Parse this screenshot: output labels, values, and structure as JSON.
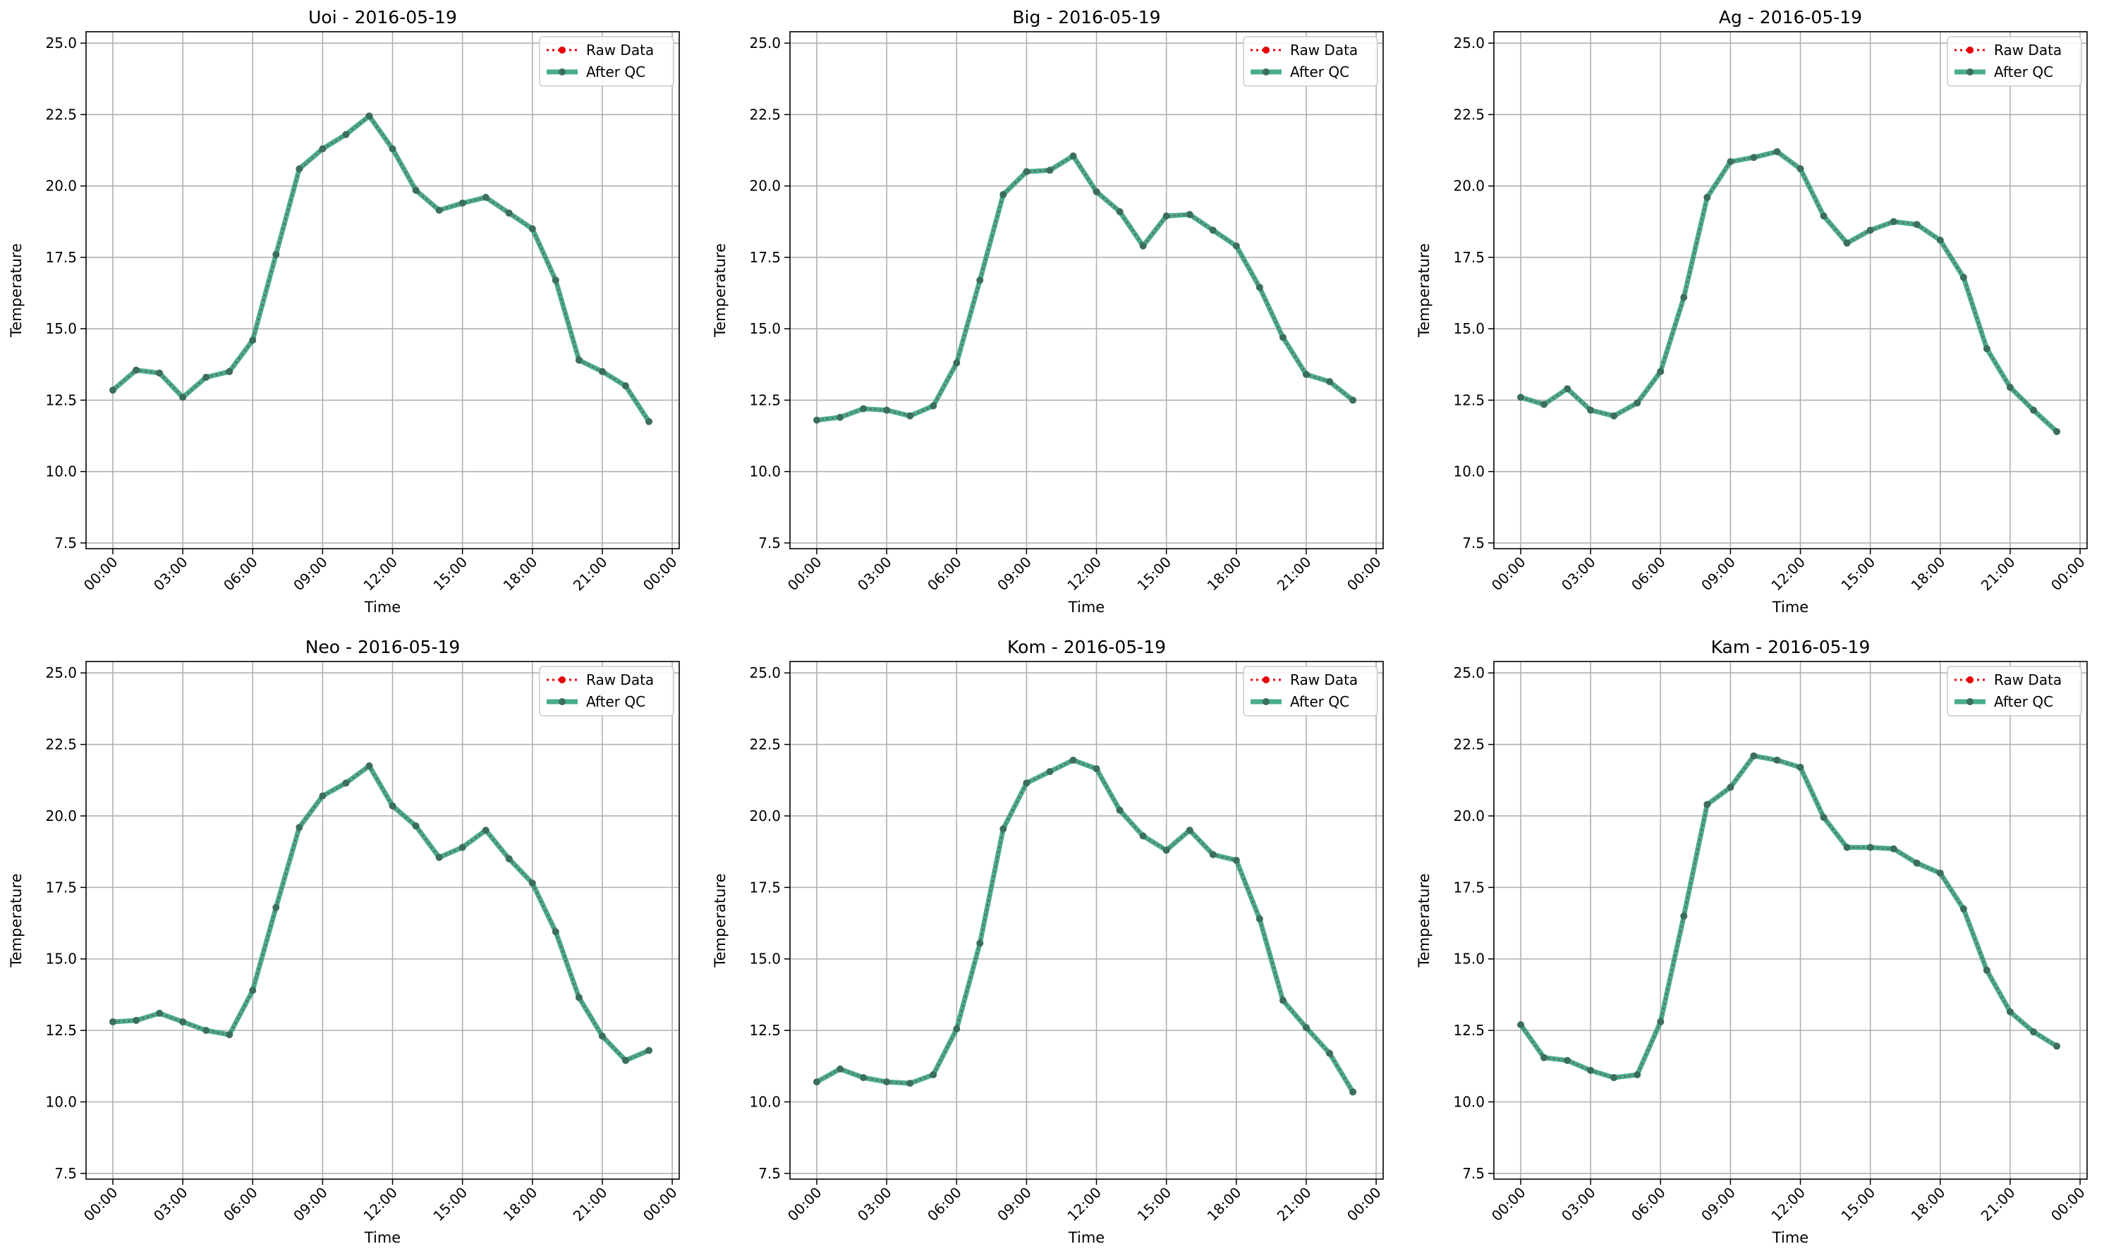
{
  "figure": {
    "x_ticks": [
      "00:00",
      "03:00",
      "06:00",
      "09:00",
      "12:00",
      "15:00",
      "18:00",
      "21:00",
      "00:00"
    ],
    "y_ticks": [
      "7.5",
      "10.0",
      "12.5",
      "15.0",
      "17.5",
      "20.0",
      "22.5",
      "25.0"
    ]
  },
  "legend": {
    "raw_label": "Raw Data",
    "qc_label": "After QC",
    "raw_color": "#e8000b",
    "qc_color": "#2a9d7a",
    "qc_marker_color": "#3b6e5e"
  },
  "chart_data": [
    {
      "type": "line",
      "title": "Uoi - 2016-05-19",
      "xlabel": "Time",
      "ylabel": "Temperature",
      "ylim": [
        7.3,
        25.4
      ],
      "x_hours": [
        0,
        1,
        2,
        3,
        4,
        5,
        6,
        7,
        8,
        9,
        10,
        11,
        12,
        13,
        14,
        15,
        16,
        17,
        18,
        19,
        20,
        21,
        22,
        23
      ],
      "series": [
        {
          "name": "Raw Data",
          "values": [
            12.85,
            13.55,
            13.45,
            12.6,
            13.3,
            13.5,
            14.6,
            17.6,
            20.6,
            21.3,
            21.8,
            22.45,
            21.3,
            19.85,
            19.15,
            19.4,
            19.6,
            19.05,
            18.5,
            16.7,
            13.9,
            13.5,
            13.0,
            11.75
          ]
        },
        {
          "name": "After QC",
          "values": [
            12.85,
            13.55,
            13.45,
            12.6,
            13.3,
            13.5,
            14.6,
            17.6,
            20.6,
            21.3,
            21.8,
            22.45,
            21.3,
            19.85,
            19.15,
            19.4,
            19.6,
            19.05,
            18.5,
            16.7,
            13.9,
            13.5,
            13.0,
            11.75
          ]
        }
      ]
    },
    {
      "type": "line",
      "title": "Big - 2016-05-19",
      "xlabel": "Time",
      "ylabel": "Temperature",
      "ylim": [
        7.3,
        25.4
      ],
      "x_hours": [
        0,
        1,
        2,
        3,
        4,
        5,
        6,
        7,
        8,
        9,
        10,
        11,
        12,
        13,
        14,
        15,
        16,
        17,
        18,
        19,
        20,
        21,
        22,
        23
      ],
      "series": [
        {
          "name": "Raw Data",
          "values": [
            11.8,
            11.9,
            12.2,
            12.15,
            11.95,
            12.3,
            13.8,
            16.7,
            19.7,
            20.5,
            20.55,
            21.05,
            19.8,
            19.1,
            17.9,
            18.95,
            19.0,
            18.45,
            17.9,
            16.45,
            14.7,
            13.4,
            13.15,
            12.5
          ]
        },
        {
          "name": "After QC",
          "values": [
            11.8,
            11.9,
            12.2,
            12.15,
            11.95,
            12.3,
            13.8,
            16.7,
            19.7,
            20.5,
            20.55,
            21.05,
            19.8,
            19.1,
            17.9,
            18.95,
            19.0,
            18.45,
            17.9,
            16.45,
            14.7,
            13.4,
            13.15,
            12.5
          ]
        }
      ]
    },
    {
      "type": "line",
      "title": "Ag - 2016-05-19",
      "xlabel": "Time",
      "ylabel": "Temperature",
      "ylim": [
        7.3,
        25.4
      ],
      "x_hours": [
        0,
        1,
        2,
        3,
        4,
        5,
        6,
        7,
        8,
        9,
        10,
        11,
        12,
        13,
        14,
        15,
        16,
        17,
        18,
        19,
        20,
        21,
        22,
        23
      ],
      "series": [
        {
          "name": "Raw Data",
          "values": [
            12.6,
            12.35,
            12.9,
            12.15,
            11.95,
            12.4,
            13.5,
            16.1,
            19.6,
            20.85,
            21.0,
            21.2,
            20.6,
            18.95,
            18.0,
            18.45,
            18.75,
            18.65,
            18.1,
            16.8,
            14.3,
            12.95,
            12.15,
            11.4
          ]
        },
        {
          "name": "After QC",
          "values": [
            12.6,
            12.35,
            12.9,
            12.15,
            11.95,
            12.4,
            13.5,
            16.1,
            19.6,
            20.85,
            21.0,
            21.2,
            20.6,
            18.95,
            18.0,
            18.45,
            18.75,
            18.65,
            18.1,
            16.8,
            14.3,
            12.95,
            12.15,
            11.4
          ]
        }
      ]
    },
    {
      "type": "line",
      "title": "Neo - 2016-05-19",
      "xlabel": "Time",
      "ylabel": "Temperature",
      "ylim": [
        7.3,
        25.4
      ],
      "x_hours": [
        0,
        1,
        2,
        3,
        4,
        5,
        6,
        7,
        8,
        9,
        10,
        11,
        12,
        13,
        14,
        15,
        16,
        17,
        18,
        19,
        20,
        21,
        22,
        23
      ],
      "series": [
        {
          "name": "Raw Data",
          "values": [
            12.8,
            12.85,
            13.1,
            12.8,
            12.5,
            12.35,
            13.9,
            16.8,
            19.6,
            20.7,
            21.15,
            21.75,
            20.35,
            19.65,
            18.55,
            18.9,
            19.5,
            18.5,
            17.65,
            15.95,
            13.65,
            12.3,
            11.45,
            11.8
          ]
        },
        {
          "name": "After QC",
          "values": [
            12.8,
            12.85,
            13.1,
            12.8,
            12.5,
            12.35,
            13.9,
            16.8,
            19.6,
            20.7,
            21.15,
            21.75,
            20.35,
            19.65,
            18.55,
            18.9,
            19.5,
            18.5,
            17.65,
            15.95,
            13.65,
            12.3,
            11.45,
            11.8
          ]
        }
      ]
    },
    {
      "type": "line",
      "title": "Kom - 2016-05-19",
      "xlabel": "Time",
      "ylabel": "Temperature",
      "ylim": [
        7.3,
        25.4
      ],
      "x_hours": [
        0,
        1,
        2,
        3,
        4,
        5,
        6,
        7,
        8,
        9,
        10,
        11,
        12,
        13,
        14,
        15,
        16,
        17,
        18,
        19,
        20,
        21,
        22,
        23
      ],
      "series": [
        {
          "name": "Raw Data",
          "values": [
            10.7,
            11.15,
            10.85,
            10.7,
            10.65,
            10.95,
            12.55,
            15.55,
            19.55,
            21.15,
            21.55,
            21.95,
            21.65,
            20.2,
            19.3,
            18.8,
            19.5,
            18.65,
            18.45,
            16.4,
            13.55,
            12.6,
            11.7,
            10.35
          ]
        },
        {
          "name": "After QC",
          "values": [
            10.7,
            11.15,
            10.85,
            10.7,
            10.65,
            10.95,
            12.55,
            15.55,
            19.55,
            21.15,
            21.55,
            21.95,
            21.65,
            20.2,
            19.3,
            18.8,
            19.5,
            18.65,
            18.45,
            16.4,
            13.55,
            12.6,
            11.7,
            10.35
          ]
        }
      ]
    },
    {
      "type": "line",
      "title": "Kam - 2016-05-19",
      "xlabel": "Time",
      "ylabel": "Temperature",
      "ylim": [
        7.3,
        25.4
      ],
      "x_hours": [
        0,
        1,
        2,
        3,
        4,
        5,
        6,
        7,
        8,
        9,
        10,
        11,
        12,
        13,
        14,
        15,
        16,
        17,
        18,
        19,
        20,
        21,
        22,
        23
      ],
      "series": [
        {
          "name": "Raw Data",
          "values": [
            12.7,
            11.55,
            11.45,
            11.1,
            10.85,
            10.95,
            12.8,
            16.5,
            20.4,
            21.0,
            22.1,
            21.95,
            21.7,
            19.95,
            18.9,
            18.9,
            18.85,
            18.35,
            18.0,
            16.75,
            14.6,
            13.15,
            12.45,
            11.95
          ]
        },
        {
          "name": "After QC",
          "values": [
            12.7,
            11.55,
            11.45,
            11.1,
            10.85,
            10.95,
            12.8,
            16.5,
            20.4,
            21.0,
            22.1,
            21.95,
            21.7,
            19.95,
            18.9,
            18.9,
            18.85,
            18.35,
            18.0,
            16.75,
            14.6,
            13.15,
            12.45,
            11.95
          ]
        }
      ]
    }
  ]
}
